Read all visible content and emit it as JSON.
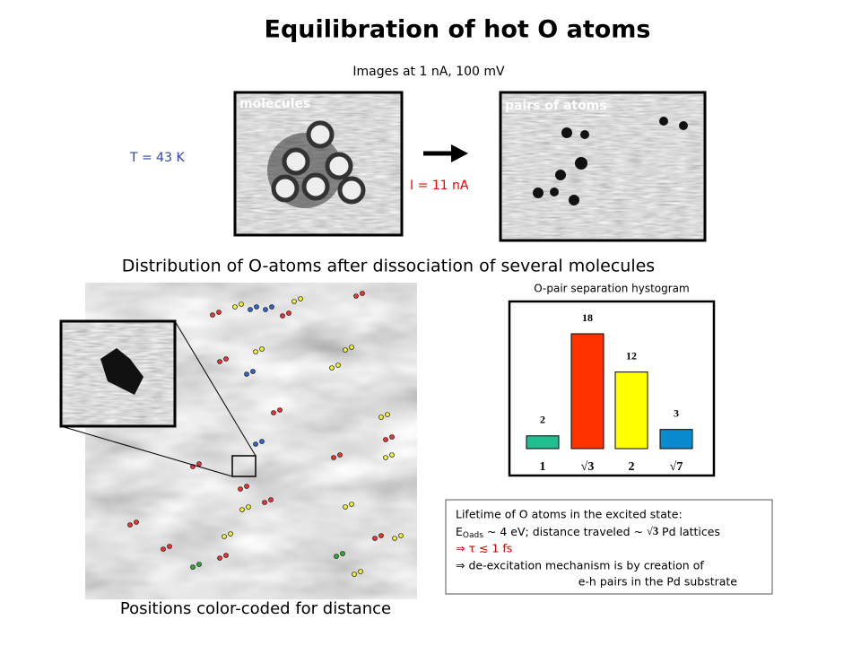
{
  "slide": {
    "title": "Equilibration of hot O atoms",
    "subtitle": "Images  at 1 nA, 100 mV",
    "image_left_label": "molecules",
    "image_right_label": "pairs of atoms",
    "temperature": "T = 43 K",
    "current": "I = 11 nA",
    "section_heading": "Distribution of O-atoms after dissociation of several molecules",
    "caption": "Positions color-coded for distance",
    "note": {
      "line1": "Lifetime of O atoms in the excited state:",
      "e": "E",
      "e_sub": "Oads",
      "line2_a": " ~ 4 eV; distance traveled ~ ",
      "line2_b": "√3",
      "line2_c": " Pd lattices",
      "line3": "⇒  τ ≲ 1 fs",
      "line4": "⇒ de-excitation mechanism is by creation of",
      "line5": "e-h pairs in the Pd substrate"
    }
  },
  "chart_data": {
    "type": "bar",
    "title": "O-pair separation hystogram",
    "categories": [
      "1",
      "√3",
      "2",
      "√7"
    ],
    "values": [
      2,
      18,
      12,
      3
    ],
    "colors": [
      "#1fbf8f",
      "#ff3300",
      "#ffff00",
      "#0a8bd0"
    ]
  }
}
